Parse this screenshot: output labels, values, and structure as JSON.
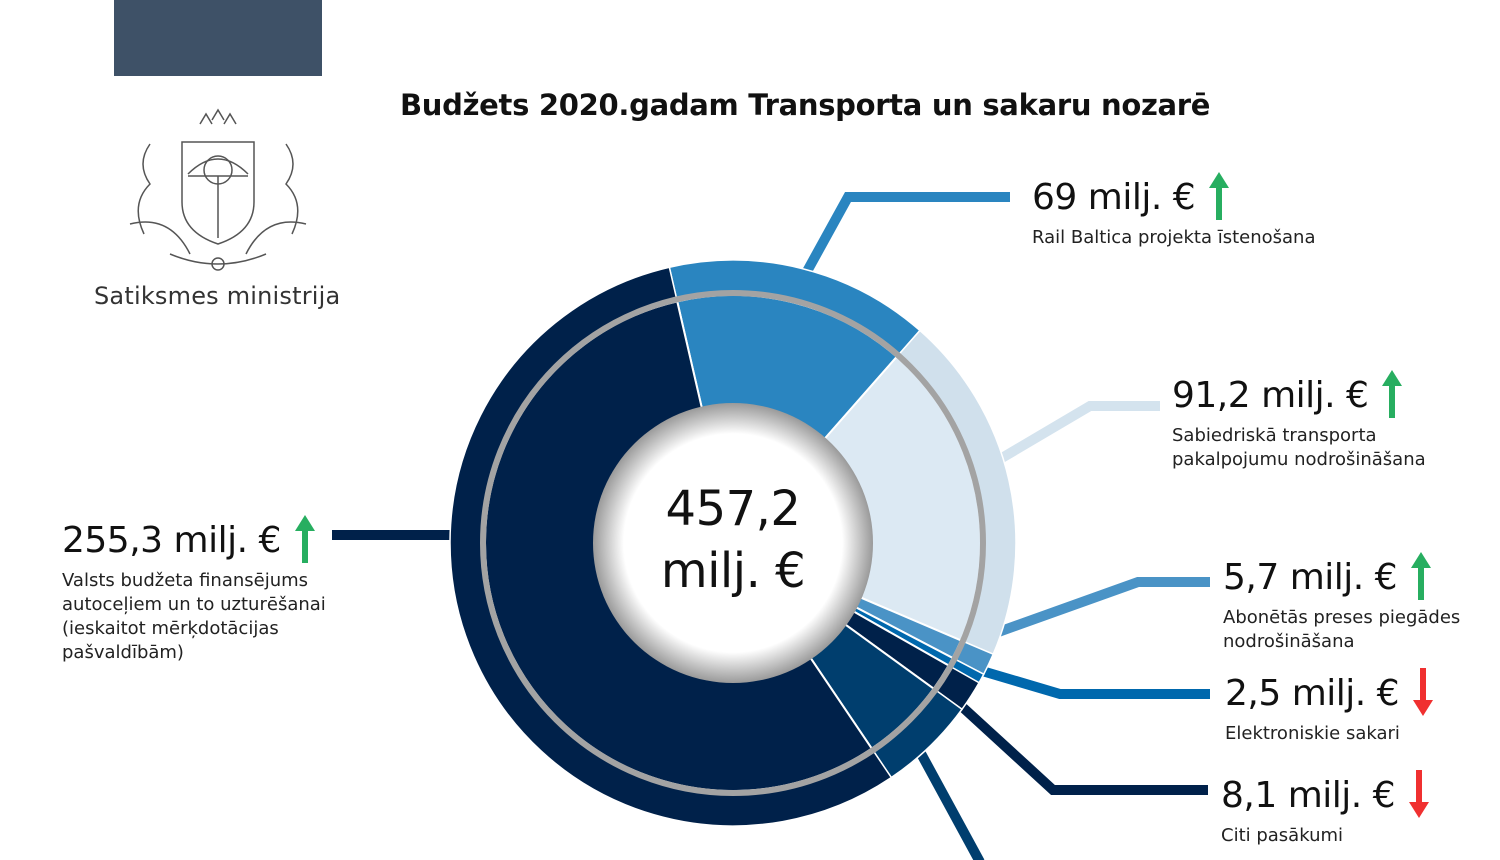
{
  "header": {
    "title": "Budžets 2020.gadam Transporta un sakaru nozarē",
    "ministry_name": "Satiksmes ministrija",
    "logo": "Latvian coat of arms"
  },
  "chart_data": {
    "type": "pie",
    "style": "donut",
    "title": "Budžets 2020.gadam Transporta un sakaru nozarē",
    "total_label": {
      "value": "457,2",
      "unit": "milj. €"
    },
    "total": 457.2,
    "slices": [
      {
        "value": 69,
        "value_label": "69 milj. €",
        "label": "Rail Baltica projekta īstenošana",
        "trend": "up",
        "color": "#2a85c0"
      },
      {
        "value": 91.2,
        "value_label": "91,2 milj. €",
        "label_lines": [
          "Sabiedriskā transporta",
          "pakalpojumu nodrošināšana"
        ],
        "trend": "up",
        "color": "#dce9f3"
      },
      {
        "value": 5.7,
        "value_label": "5,7 milj. €",
        "label_lines": [
          "Abonētās preses piegādes",
          "nodrošināšana"
        ],
        "trend": "up",
        "color": "#4a93c6"
      },
      {
        "value": 2.5,
        "value_label": "2,5 milj. €",
        "label": "Elektroniskie sakari",
        "trend": "down",
        "color": "#0068ad"
      },
      {
        "value": 8.1,
        "value_label": "8,1 milj. €",
        "label": "Citi pasākumi",
        "trend": "down",
        "color": "#00214a"
      },
      {
        "value": 25.4,
        "color": "#003e6e"
      },
      {
        "value": 255.3,
        "value_label": "255,3 milj. €",
        "label_lines": [
          "Valsts budžeta finansējums",
          "autoceļiem un to uzturēšanai",
          "(ieskaitot mērķdotācijas",
          "pašvaldībām)"
        ],
        "trend": "up",
        "color": "#00214a"
      }
    ],
    "trend_colors": {
      "up": "#27ae60",
      "down": "#f03030"
    }
  }
}
